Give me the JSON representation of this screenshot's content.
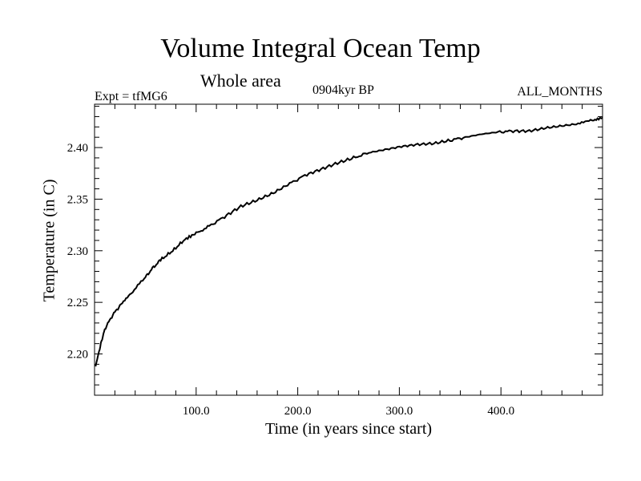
{
  "chart_data": {
    "type": "line",
    "title": "Volume Integral Ocean Temp",
    "subtitle": "Whole area",
    "left_label": "Expt = tfMG6",
    "center_label": "0904kyr BP",
    "right_label": "ALL_MONTHS",
    "xlabel": "Time (in years since start)",
    "ylabel": "Temperature (in C)",
    "xlim": [
      0,
      500
    ],
    "ylim": [
      2.16,
      2.442
    ],
    "xticks": [
      100,
      200,
      300,
      400
    ],
    "xtick_labels": [
      "100.0",
      "200.0",
      "300.0",
      "400.0"
    ],
    "yticks": [
      2.2,
      2.25,
      2.3,
      2.35,
      2.4
    ],
    "ytick_labels": [
      "2.20",
      "2.25",
      "2.30",
      "2.35",
      "2.40"
    ],
    "grid": false,
    "series": [
      {
        "name": "tfMG6",
        "color": "#000000",
        "x": [
          1,
          5,
          10,
          18,
          26,
          36,
          49,
          57,
          65,
          77,
          89,
          100,
          113,
          128,
          144,
          160,
          176,
          192,
          207,
          223,
          239,
          255,
          270,
          286,
          302,
          318,
          334,
          350,
          365,
          381,
          397,
          412,
          428,
          444,
          460,
          476,
          490,
          500
        ],
        "y": [
          2.188,
          2.205,
          2.224,
          2.238,
          2.248,
          2.259,
          2.273,
          2.283,
          2.291,
          2.3,
          2.311,
          2.317,
          2.324,
          2.333,
          2.343,
          2.349,
          2.356,
          2.365,
          2.373,
          2.379,
          2.385,
          2.39,
          2.395,
          2.398,
          2.401,
          2.403,
          2.404,
          2.407,
          2.41,
          2.413,
          2.415,
          2.416,
          2.416,
          2.419,
          2.421,
          2.423,
          2.426,
          2.429
        ]
      }
    ]
  }
}
